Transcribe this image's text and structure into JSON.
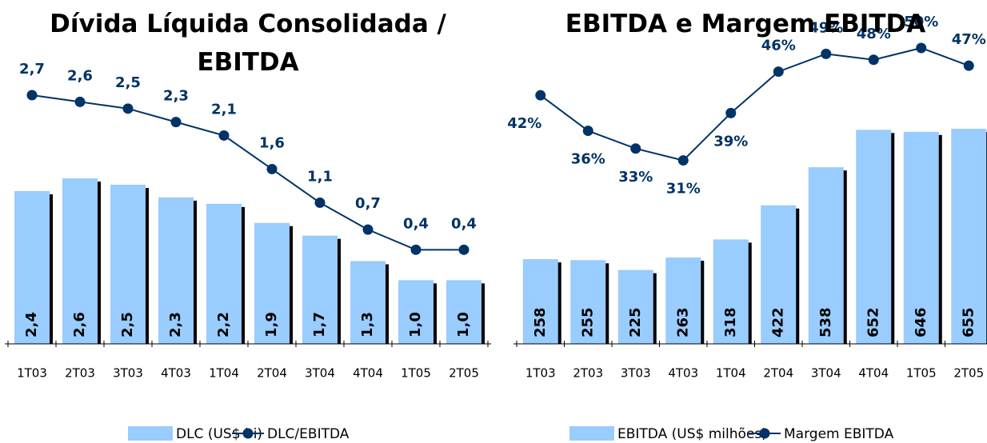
{
  "chart_data": [
    {
      "type": "bar-line",
      "title": "Dívida Líquida Consolidada / EBITDA",
      "categories": [
        "1T03",
        "2T03",
        "3T03",
        "4T03",
        "1T04",
        "2T04",
        "3T04",
        "4T04",
        "1T05",
        "2T05"
      ],
      "ylim": [
        0,
        4.9
      ],
      "y2lim": [
        -1,
        3.64
      ],
      "series": [
        {
          "name": "DLC (US$ bi)",
          "type": "bar",
          "color": "#99ccff",
          "values": [
            2.4,
            2.6,
            2.5,
            2.3,
            2.2,
            1.9,
            1.7,
            1.3,
            1.0,
            1.0
          ],
          "value_labels": [
            "2,4",
            "2,6",
            "2,5",
            "2,3",
            "2,2",
            "1,9",
            "1,7",
            "1,3",
            "1,0",
            "1,0"
          ]
        },
        {
          "name": "DLC/EBITDA",
          "type": "line",
          "axis": "y2",
          "color": "#003366",
          "values": [
            2.7,
            2.6,
            2.5,
            2.3,
            2.1,
            1.6,
            1.1,
            0.7,
            0.4,
            0.4
          ],
          "value_labels": [
            "2,7",
            "2,6",
            "2,5",
            "2,3",
            "2,1",
            "1,6",
            "1,1",
            "0,7",
            "0,4",
            "0,4"
          ]
        }
      ]
    },
    {
      "type": "bar-line",
      "title": "EBITDA e Margem EBITDA",
      "categories": [
        "1T03",
        "2T03",
        "3T03",
        "4T03",
        "1T04",
        "2T04",
        "3T04",
        "4T04",
        "1T05",
        "2T05"
      ],
      "ylim": [
        0,
        950
      ],
      "y2lim": [
        0,
        52.7
      ],
      "series": [
        {
          "name": "EBITDA (US$ milhões)",
          "type": "bar",
          "color": "#99ccff",
          "values": [
            258,
            255,
            225,
            263,
            318,
            422,
            538,
            652,
            646,
            655
          ]
        },
        {
          "name": "Margem EBITDA",
          "type": "line",
          "axis": "y2",
          "color": "#003366",
          "values": [
            42,
            36,
            33,
            31,
            39,
            46,
            49,
            48,
            50,
            47
          ],
          "value_labels": [
            "42%",
            "36%",
            "33%",
            "31%",
            "39%",
            "46%",
            "49%",
            "48%",
            "50%",
            "47%"
          ]
        }
      ]
    }
  ]
}
